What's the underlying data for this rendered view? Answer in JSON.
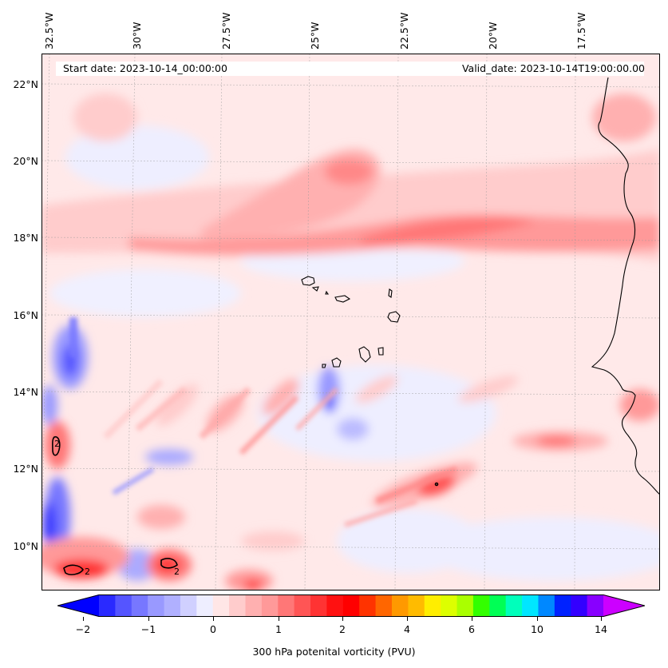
{
  "map": {
    "start_date_label": "Start date: 2023-10-14_00:00:00",
    "valid_date_label": "Valid_date: 2023-10-14T19:00:00.00",
    "longitude_labels": [
      "32.5°W",
      "30°W",
      "27.5°W",
      "25°W",
      "22.5°W",
      "20°W",
      "17.5°W"
    ],
    "latitude_labels": [
      "22°N",
      "20°N",
      "18°N",
      "16°N",
      "14°N",
      "12°N",
      "10°N"
    ],
    "contour_label": "2"
  },
  "colorbar": {
    "label": "300 hPa potenital vorticity (PVU)",
    "tick_labels": [
      "−2",
      "−1",
      "0",
      "1",
      "2",
      "4",
      "6",
      "10",
      "14"
    ],
    "colors": [
      "#0000ff",
      "#2a2aff",
      "#5555ff",
      "#7777ff",
      "#9999ff",
      "#b0b0ff",
      "#d0d0ff",
      "#eeeeff",
      "#ffe6e6",
      "#ffcccc",
      "#ffb0b0",
      "#ff9999",
      "#ff7777",
      "#ff5555",
      "#ff3333",
      "#ff1111",
      "#ff0000",
      "#ff3300",
      "#ff6600",
      "#ff9900",
      "#ffbb00",
      "#ffee00",
      "#ddff00",
      "#aaff00",
      "#33ff00",
      "#00ff55",
      "#00ffbb",
      "#00e6ff",
      "#0088ff",
      "#0022ff",
      "#3300ff",
      "#8800ff",
      "#cc00ff"
    ]
  }
}
